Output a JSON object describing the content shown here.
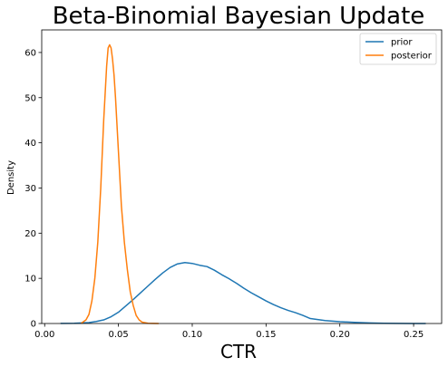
{
  "chart_data": {
    "type": "line",
    "title": "Beta-Binomial Bayesian Update",
    "xlabel": "CTR",
    "ylabel": "Density",
    "xlim": [
      -0.002,
      0.269
    ],
    "ylim": [
      0,
      65
    ],
    "xticks": [
      0.0,
      0.05,
      0.1,
      0.15,
      0.2,
      0.25
    ],
    "xtick_labels": [
      "0.00",
      "0.05",
      "0.10",
      "0.15",
      "0.20",
      "0.25"
    ],
    "yticks": [
      0,
      10,
      20,
      30,
      40,
      50,
      60
    ],
    "ytick_labels": [
      "0",
      "10",
      "20",
      "30",
      "40",
      "50",
      "60"
    ],
    "grid": false,
    "legend_position": "top-right",
    "series": [
      {
        "name": "prior",
        "color": "#1f77b4",
        "x": [
          0.011,
          0.02,
          0.03,
          0.035,
          0.04,
          0.045,
          0.05,
          0.055,
          0.06,
          0.065,
          0.07,
          0.075,
          0.08,
          0.085,
          0.09,
          0.095,
          0.1,
          0.105,
          0.11,
          0.115,
          0.12,
          0.125,
          0.13,
          0.135,
          0.14,
          0.145,
          0.15,
          0.155,
          0.16,
          0.165,
          0.17,
          0.175,
          0.18,
          0.19,
          0.2,
          0.21,
          0.22,
          0.23,
          0.24,
          0.25,
          0.258
        ],
        "y": [
          0.02,
          0.05,
          0.2,
          0.45,
          0.8,
          1.5,
          2.5,
          3.9,
          5.3,
          6.8,
          8.3,
          9.8,
          11.2,
          12.4,
          13.2,
          13.5,
          13.3,
          12.9,
          12.6,
          11.8,
          10.8,
          9.9,
          8.9,
          7.8,
          6.8,
          5.9,
          5.0,
          4.2,
          3.5,
          2.9,
          2.4,
          1.8,
          1.1,
          0.65,
          0.4,
          0.25,
          0.12,
          0.06,
          0.03,
          0.01,
          0.0
        ]
      },
      {
        "name": "posterior",
        "color": "#ff7f0e",
        "x": [
          0.025,
          0.028,
          0.03,
          0.032,
          0.034,
          0.036,
          0.038,
          0.04,
          0.042,
          0.043,
          0.044,
          0.045,
          0.046,
          0.047,
          0.048,
          0.05,
          0.052,
          0.054,
          0.056,
          0.058,
          0.06,
          0.062,
          0.064,
          0.066,
          0.07,
          0.077
        ],
        "y": [
          0.1,
          0.8,
          2.0,
          5.0,
          10.0,
          18.0,
          30.0,
          45.0,
          57.0,
          61.0,
          61.7,
          61.0,
          58.5,
          55.0,
          50.0,
          38.0,
          26.0,
          18.0,
          12.0,
          7.0,
          4.0,
          1.8,
          0.8,
          0.3,
          0.05,
          0.0
        ]
      }
    ]
  }
}
